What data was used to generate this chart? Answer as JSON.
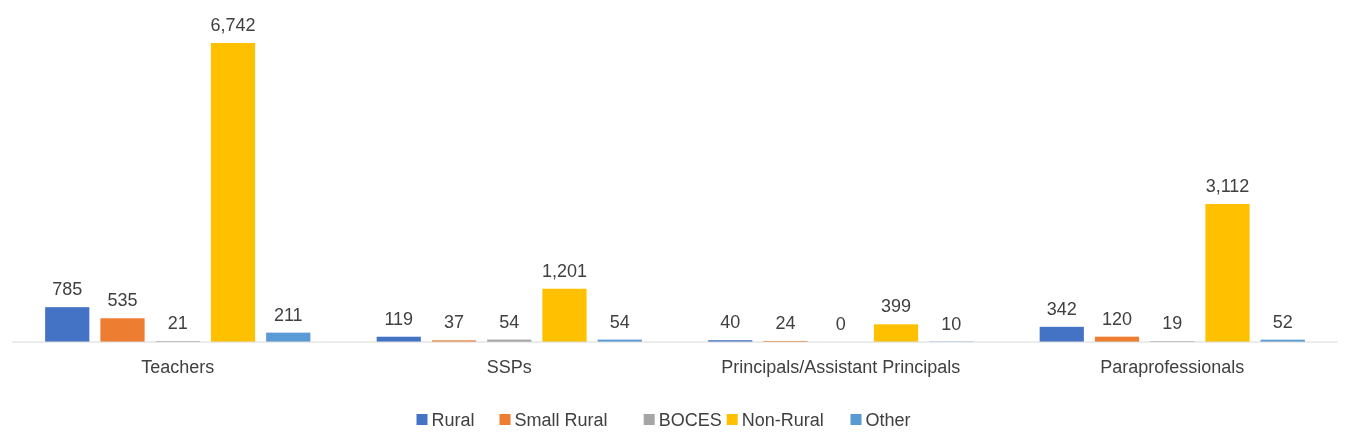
{
  "chart_data": {
    "type": "bar",
    "categories": [
      "Teachers",
      "SSPs",
      "Principals/Assistant Principals",
      "Paraprofessionals"
    ],
    "series": [
      {
        "name": "Rural",
        "color": "#4472c4",
        "values": [
          785,
          119,
          40,
          342
        ],
        "value_labels": [
          "785",
          "119",
          "40",
          "342"
        ]
      },
      {
        "name": "Small Rural",
        "color": "#ed7d31",
        "values": [
          535,
          37,
          24,
          120
        ],
        "value_labels": [
          "535",
          "37",
          "24",
          "120"
        ]
      },
      {
        "name": "BOCES",
        "color": "#a5a5a5",
        "values": [
          21,
          54,
          0,
          19
        ],
        "value_labels": [
          "21",
          "54",
          "0",
          "19"
        ]
      },
      {
        "name": "Non-Rural",
        "color": "#ffc000",
        "values": [
          6742,
          1201,
          399,
          3112
        ],
        "value_labels": [
          "6,742",
          "1,201",
          "399",
          "3,112"
        ]
      },
      {
        "name": "Other",
        "color": "#5b9bd5",
        "values": [
          211,
          54,
          10,
          52
        ],
        "value_labels": [
          "211",
          "54",
          "10",
          "52"
        ]
      }
    ],
    "legend": "bottom"
  }
}
